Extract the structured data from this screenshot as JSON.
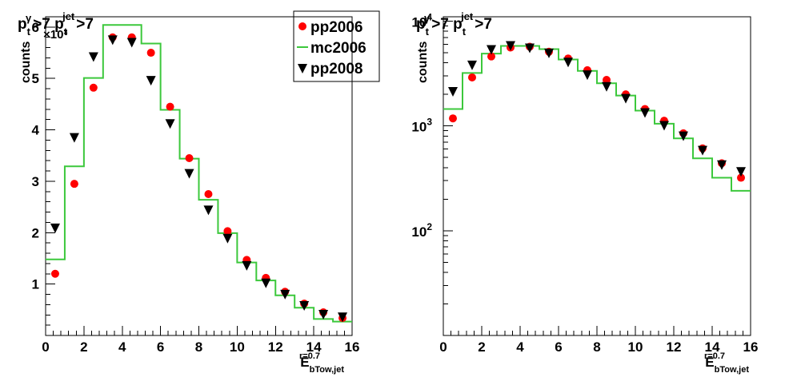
{
  "chart_data": [
    {
      "type": "scatter",
      "title": "p_t^γ>7 p_t^jet>7",
      "title_parts": {
        "p1": "p",
        "s1": "t",
        "sup1": "γ",
        "mid": ">7 p",
        "s2": "t",
        "sup2": "jet",
        "end": ">7"
      },
      "ylabel": "counts",
      "exponent_label": "×10³",
      "xlabel": {
        "main": "E",
        "sub": "bTow,jet",
        "sup": "r=0.7"
      },
      "xlim": [
        0,
        16
      ],
      "ylim": [
        0,
        6200
      ],
      "log_y": false,
      "x_ticks": [
        "0",
        "2",
        "4",
        "6",
        "8",
        "10",
        "12",
        "14",
        "16"
      ],
      "y_ticks": [
        "1",
        "2",
        "3",
        "4",
        "5",
        "6"
      ],
      "legend_position": "top-right",
      "legend": [
        "pp2006",
        "mc2006",
        "pp2008"
      ],
      "hist_edges": [
        0,
        1,
        2,
        3,
        4,
        5,
        6,
        7,
        8,
        9,
        10,
        11,
        12,
        13,
        14,
        15,
        16
      ],
      "series": [
        {
          "name": "pp2006",
          "marker": "circle",
          "color": "#ff0000",
          "x": [
            0.5,
            1.5,
            2.5,
            3.5,
            4.5,
            5.5,
            6.5,
            7.5,
            8.5,
            9.5,
            10.5,
            11.5,
            12.5,
            13.5,
            14.5,
            15.5
          ],
          "y": [
            1200,
            2950,
            4820,
            5800,
            5800,
            5500,
            4450,
            3450,
            2750,
            2030,
            1470,
            1120,
            850,
            620,
            450,
            340
          ]
        },
        {
          "name": "mc2006",
          "marker": "step",
          "color": "#3cc83c",
          "values": [
            1480,
            3290,
            5010,
            6040,
            6040,
            5680,
            4390,
            3440,
            2640,
            1990,
            1420,
            1070,
            780,
            540,
            320,
            270
          ]
        },
        {
          "name": "pp2008",
          "marker": "triangle-down",
          "color": "#000000",
          "x": [
            0.5,
            1.5,
            2.5,
            3.5,
            4.5,
            5.5,
            6.5,
            7.5,
            8.5,
            9.5,
            10.5,
            11.5,
            12.5,
            13.5,
            14.5,
            15.5
          ],
          "y": [
            2100,
            3860,
            5430,
            5760,
            5710,
            4970,
            4130,
            3160,
            2450,
            1900,
            1370,
            1030,
            810,
            590,
            420,
            370
          ]
        }
      ]
    },
    {
      "type": "scatter",
      "title": "p_t^γ>7 p_t^jet>7",
      "title_parts": {
        "p1": "p",
        "s1": "t",
        "sup1": "γ",
        "mid": ">7 p",
        "s2": "t",
        "sup2": "jet",
        "end": ">7"
      },
      "ylabel": "counts",
      "xlabel": {
        "main": "E",
        "sub": "bTow,jet",
        "sup": "r=0.7"
      },
      "xlim": [
        0,
        16
      ],
      "ylim": [
        10,
        11000
      ],
      "log_y": true,
      "x_ticks": [
        "0",
        "2",
        "4",
        "6",
        "8",
        "10",
        "12",
        "14",
        "16"
      ],
      "y_ticks": [
        {
          "base": "10",
          "exp": "2"
        },
        {
          "base": "10",
          "exp": "3"
        },
        {
          "base": "10",
          "exp": "4"
        }
      ],
      "hist_edges": [
        0,
        1,
        2,
        3,
        4,
        5,
        6,
        7,
        8,
        9,
        10,
        11,
        12,
        13,
        14,
        15,
        16
      ],
      "series": [
        {
          "name": "pp2006",
          "marker": "circle",
          "color": "#ff0000",
          "x": [
            0.5,
            1.5,
            2.5,
            3.5,
            4.5,
            5.5,
            6.5,
            7.5,
            8.5,
            9.5,
            10.5,
            11.5,
            12.5,
            13.5,
            14.5,
            15.5
          ],
          "y": [
            1180,
            2900,
            4600,
            5600,
            5700,
            5100,
            4400,
            3400,
            2750,
            2000,
            1450,
            1120,
            850,
            610,
            440,
            320
          ]
        },
        {
          "name": "mc2006",
          "marker": "step",
          "color": "#3cc83c",
          "values": [
            1450,
            3200,
            4900,
            5800,
            5800,
            5400,
            4300,
            3350,
            2550,
            1950,
            1400,
            1050,
            760,
            490,
            320,
            240
          ]
        },
        {
          "name": "pp2008",
          "marker": "triangle-down",
          "color": "#000000",
          "x": [
            0.5,
            1.5,
            2.5,
            3.5,
            4.5,
            5.5,
            6.5,
            7.5,
            8.5,
            9.5,
            10.5,
            11.5,
            12.5,
            13.5,
            14.5,
            15.5
          ],
          "y": [
            2150,
            3850,
            5400,
            5900,
            5600,
            5000,
            4100,
            3100,
            2400,
            1850,
            1350,
            1020,
            810,
            590,
            430,
            370
          ]
        }
      ]
    }
  ]
}
